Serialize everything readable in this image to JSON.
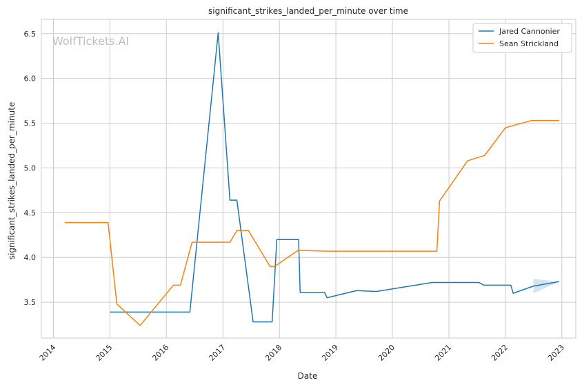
{
  "chart_data": {
    "type": "line",
    "title": "significant_strikes_landed_per_minute over time",
    "xlabel": "Date",
    "ylabel": "significant_strikes_landed_per_minute",
    "watermark": "WolfTickets.AI",
    "x_ticks": [
      "2014",
      "2015",
      "2016",
      "2017",
      "2018",
      "2019",
      "2020",
      "2021",
      "2022",
      "2023"
    ],
    "y_ticks": [
      "3.5",
      "4.0",
      "4.5",
      "5.0",
      "5.5",
      "6.0",
      "6.5"
    ],
    "xlim": [
      "2013-10-15",
      "2023-04-01"
    ],
    "ylim": [
      3.1,
      6.66
    ],
    "grid": true,
    "legend_position": "top-right",
    "series": [
      {
        "name": "Jared Cannonier",
        "color": "#1f77b4",
        "points": [
          [
            "2015-01-01",
            3.39
          ],
          [
            "2016-06-01",
            3.39
          ],
          [
            "2016-12-01",
            6.51
          ],
          [
            "2017-02-15",
            4.64
          ],
          [
            "2017-04-01",
            4.64
          ],
          [
            "2017-07-15",
            3.28
          ],
          [
            "2017-11-15",
            3.28
          ],
          [
            "2017-12-15",
            4.2
          ],
          [
            "2018-05-05",
            4.2
          ],
          [
            "2018-05-15",
            3.61
          ],
          [
            "2018-10-20",
            3.61
          ],
          [
            "2018-11-05",
            3.55
          ],
          [
            "2019-05-15",
            3.63
          ],
          [
            "2019-09-20",
            3.62
          ],
          [
            "2020-09-15",
            3.72
          ],
          [
            "2021-07-15",
            3.72
          ],
          [
            "2021-08-15",
            3.69
          ],
          [
            "2022-02-05",
            3.69
          ],
          [
            "2022-02-20",
            3.6
          ],
          [
            "2022-07-01",
            3.68
          ],
          [
            "2022-12-15",
            3.73
          ]
        ],
        "band": {
          "x": [
            "2022-07-01",
            "2022-12-15"
          ],
          "low": [
            3.6,
            3.73
          ],
          "high": [
            3.76,
            3.73
          ]
        }
      },
      {
        "name": "Sean Strickland",
        "color": "#ff7f0e",
        "points": [
          [
            "2014-03-15",
            4.39
          ],
          [
            "2014-12-20",
            4.39
          ],
          [
            "2015-02-15",
            3.48
          ],
          [
            "2015-07-15",
            3.24
          ],
          [
            "2016-02-15",
            3.69
          ],
          [
            "2016-04-01",
            3.69
          ],
          [
            "2016-06-15",
            4.17
          ],
          [
            "2017-02-15",
            4.17
          ],
          [
            "2017-04-01",
            4.3
          ],
          [
            "2017-06-15",
            4.3
          ],
          [
            "2017-11-01",
            3.9
          ],
          [
            "2017-12-01",
            3.9
          ],
          [
            "2018-05-01",
            4.08
          ],
          [
            "2018-11-01",
            4.07
          ],
          [
            "2020-10-15",
            4.07
          ],
          [
            "2020-11-01",
            4.63
          ],
          [
            "2021-05-01",
            5.08
          ],
          [
            "2021-08-01",
            5.13
          ],
          [
            "2021-08-20",
            5.14
          ],
          [
            "2022-01-01",
            5.45
          ],
          [
            "2022-06-20",
            5.53
          ],
          [
            "2022-12-15",
            5.53
          ]
        ]
      }
    ]
  }
}
